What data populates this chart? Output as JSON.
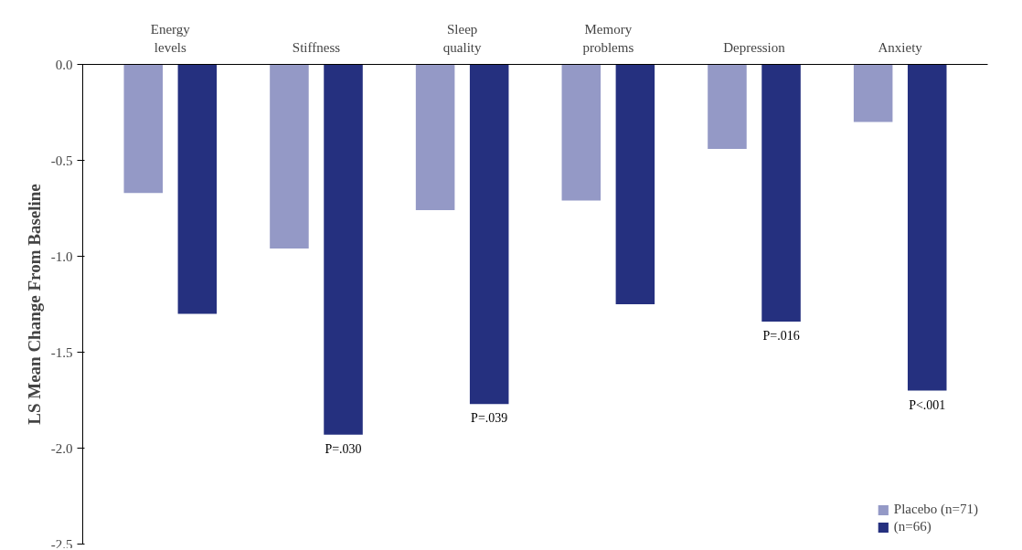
{
  "chart_data": {
    "type": "bar",
    "ylabel": "LS Mean Change From Baseline",
    "categories": [
      "Energy\nlevels",
      "Stiffness",
      "Sleep\nquality",
      "Memory\nproblems",
      "Depression",
      "Anxiety"
    ],
    "series": [
      {
        "name": "Placebo (n=71)",
        "color": "#9499c6",
        "values": [
          -0.67,
          -0.96,
          -0.76,
          -0.71,
          -0.44,
          -0.3
        ]
      },
      {
        "name": "(n=66)",
        "color": "#25307f",
        "values": [
          -1.3,
          -1.93,
          -1.77,
          -1.25,
          -1.34,
          -1.7
        ]
      }
    ],
    "ylim": [
      -2.5,
      0
    ],
    "yticks": [
      {
        "value": 0,
        "label": "0.0"
      },
      {
        "value": -0.5,
        "label": "-0.5"
      },
      {
        "value": -1,
        "label": "-1.0"
      },
      {
        "value": -1.5,
        "label": "-1.5"
      },
      {
        "value": -2,
        "label": "-2.0"
      },
      {
        "value": -2.5,
        "label": "-2.5"
      }
    ],
    "annotations": [
      "P=.030",
      "P=.039",
      "P=.016",
      "P<.001"
    ],
    "grid": false,
    "legend": "bottom right"
  }
}
